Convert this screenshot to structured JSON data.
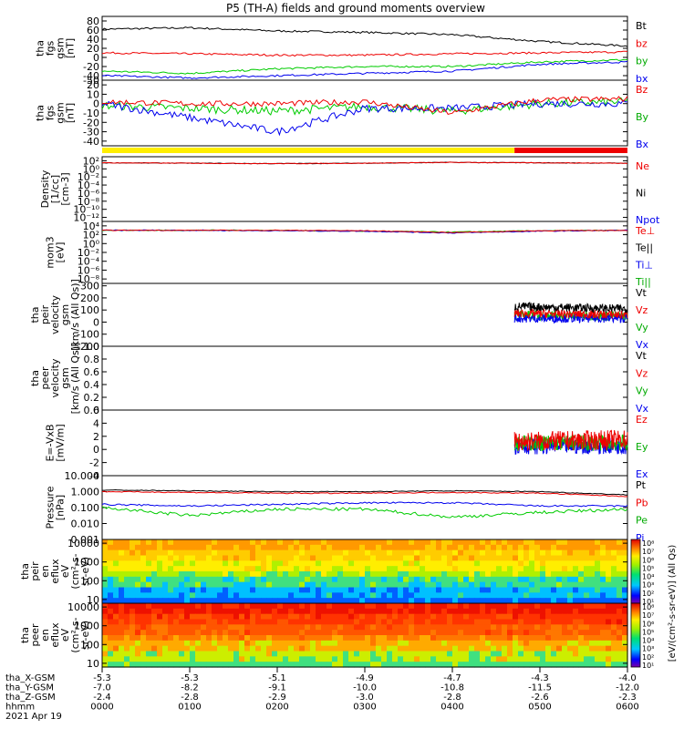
{
  "title": "P5 (TH-A) fields and ground moments overview",
  "colors": {
    "black": "#000000",
    "red": "#ee0000",
    "green": "#00cc00",
    "blue": "#0000ee",
    "yellow": "#ffee00",
    "bar_red": "#ee0000"
  },
  "panels": [
    {
      "ylabel": [
        "tha",
        "fgs",
        "gsm",
        "[nT]"
      ],
      "ylim": [
        -50,
        90
      ],
      "ticks": [
        "80",
        "60",
        "40",
        "20",
        "0",
        "-20",
        "-40",
        "-50"
      ],
      "tickvals": [
        80,
        60,
        40,
        20,
        0,
        -20,
        -40,
        -50
      ],
      "legend": [
        {
          "text": "Bt",
          "color": "#000000"
        },
        {
          "text": "bz",
          "color": "#ee0000"
        },
        {
          "text": "by",
          "color": "#00aa00"
        },
        {
          "text": "bx",
          "color": "#0000ee"
        }
      ]
    },
    {
      "ylabel": [
        "tha",
        "fgs",
        "gsm",
        "[nT]"
      ],
      "ylim": [
        -45,
        25
      ],
      "ticks": [
        "20",
        "10",
        "0",
        "-10",
        "-20",
        "-30",
        "-40"
      ],
      "tickvals": [
        20,
        10,
        0,
        -10,
        -20,
        -30,
        -40
      ],
      "legend": [
        {
          "text": "Bz",
          "color": "#ee0000"
        },
        {
          "text": "By",
          "color": "#00aa00"
        },
        {
          "text": "Bx",
          "color": "#0000ee"
        }
      ]
    },
    {
      "ylabel": [
        "Density",
        "[1/cc]",
        "[cm-3]"
      ],
      "ylim": [
        -13,
        3
      ],
      "ticks": [
        "10²",
        "10⁰",
        "10⁻²",
        "10⁻⁴",
        "10⁻⁶",
        "10⁻⁸",
        "10⁻¹⁰",
        "10⁻¹²"
      ],
      "tickvals": [
        2,
        0,
        -2,
        -4,
        -6,
        -8,
        -10,
        -12
      ],
      "legend": [
        {
          "text": "Ne",
          "color": "#ee0000"
        },
        {
          "text": "Ni",
          "color": "#000000"
        },
        {
          "text": "Npot",
          "color": "#0000ee"
        }
      ]
    },
    {
      "ylabel": [
        "mom3",
        "[eV]"
      ],
      "ylim": [
        -9,
        5
      ],
      "ticks": [
        "10⁴",
        "10²",
        "10⁰",
        "10⁻²",
        "10⁻⁴",
        "10⁻⁶",
        "10⁻⁸"
      ],
      "tickvals": [
        4,
        2,
        0,
        -2,
        -4,
        -6,
        -8
      ],
      "legend": [
        {
          "text": "Te⊥",
          "color": "#ee0000"
        },
        {
          "text": "Te||",
          "color": "#000000"
        },
        {
          "text": "Ti⊥",
          "color": "#0000ee"
        },
        {
          "text": "Ti||",
          "color": "#00aa00"
        }
      ]
    },
    {
      "ylabel": [
        "tha",
        "peir",
        "velocity",
        "gsm",
        "[km/s (All Qs)]"
      ],
      "ylim": [
        -200,
        320
      ],
      "ticks": [
        "300",
        "200",
        "100",
        "0",
        "-100",
        "-200"
      ],
      "tickvals": [
        300,
        200,
        100,
        0,
        -100,
        -200
      ],
      "legend": [
        {
          "text": "Vt",
          "color": "#000000"
        },
        {
          "text": "Vz",
          "color": "#ee0000"
        },
        {
          "text": "Vy",
          "color": "#00aa00"
        },
        {
          "text": "Vx",
          "color": "#0000ee"
        }
      ]
    },
    {
      "ylabel": [
        "tha",
        "peer",
        "velocity",
        "gsm",
        "[km/s (All Qs)]"
      ],
      "ylim": [
        0,
        1
      ],
      "ticks": [
        "1.0",
        "0.8",
        "0.6",
        "0.4",
        "0.2",
        "0.0"
      ],
      "tickvals": [
        1,
        0.8,
        0.6,
        0.4,
        0.2,
        0
      ],
      "legend": [
        {
          "text": "Vt",
          "color": "#000000"
        },
        {
          "text": "Vz",
          "color": "#ee0000"
        },
        {
          "text": "Vy",
          "color": "#00aa00"
        },
        {
          "text": "Vx",
          "color": "#0000ee"
        }
      ]
    },
    {
      "ylabel": [
        "E=-VxB",
        "[mV/m]"
      ],
      "ylim": [
        -4,
        6
      ],
      "ticks": [
        "6",
        "4",
        "2",
        "0",
        "-2",
        "-4"
      ],
      "tickvals": [
        6,
        4,
        2,
        0,
        -2,
        -4
      ],
      "legend": [
        {
          "text": "Ez",
          "color": "#ee0000"
        },
        {
          "text": "Ey",
          "color": "#00aa00"
        },
        {
          "text": "Ex",
          "color": "#0000ee"
        }
      ]
    },
    {
      "ylabel": [
        "Pressure",
        "[nPa]"
      ],
      "ylim": [
        -3,
        1
      ],
      "ticks": [
        "10.000",
        "1.000",
        "0.100",
        "0.010",
        "0.001"
      ],
      "tickvals": [
        1,
        0,
        -1,
        -2,
        -3
      ],
      "legend": [
        {
          "text": "Pt",
          "color": "#000000"
        },
        {
          "text": "Pb",
          "color": "#ee0000"
        },
        {
          "text": "Pe",
          "color": "#00aa00"
        },
        {
          "text": "Pi",
          "color": "#0000ee"
        }
      ]
    },
    {
      "ylabel": [
        "tha",
        "peir",
        "en",
        "eflux",
        "eV",
        "(cm²-s-",
        "sr-eV)"
      ],
      "ylim": [
        0.8,
        4.2
      ],
      "ticks": [
        "10000",
        "1000",
        "100",
        "10"
      ],
      "tickvals": [
        4,
        3,
        2,
        1
      ],
      "legend": []
    },
    {
      "ylabel": [
        "tha",
        "peer",
        "en",
        "eflux",
        "eV",
        "(cm²-s-",
        "sr-eV)"
      ],
      "ylim": [
        0.8,
        4.2
      ],
      "ticks": [
        "10000",
        "1000",
        "100",
        "10"
      ],
      "tickvals": [
        4,
        3,
        2,
        1
      ],
      "legend": []
    }
  ],
  "colorbar": {
    "label": "[eV/(cm²-s-sr-eV)] (All Qs)",
    "ticks_top": [
      "10⁸",
      "10⁷",
      "10⁶",
      "10⁵",
      "10⁴",
      "10³",
      "10²",
      "10¹"
    ],
    "ticks_bottom": [
      "10⁸",
      "10⁷",
      "10⁶",
      "10⁵",
      "10⁴",
      "10³",
      "10²",
      "10¹"
    ]
  },
  "mode_bar": {
    "segments": [
      {
        "from": 0,
        "to": 0.785,
        "color": "#ffee00"
      },
      {
        "from": 0.785,
        "to": 1,
        "color": "#ee0000"
      }
    ]
  },
  "xaxis": {
    "rows": [
      {
        "label": "tha_X-GSM",
        "values": [
          "-5.3",
          "-5.3",
          "-5.1",
          "-4.9",
          "-4.7",
          "-4.3",
          "-4.0"
        ]
      },
      {
        "label": "tha_Y-GSM",
        "values": [
          "-7.0",
          "-8.2",
          "-9.1",
          "-10.0",
          "-10.8",
          "-11.5",
          "-12.0"
        ]
      },
      {
        "label": "tha_Z-GSM",
        "values": [
          "-2.4",
          "-2.8",
          "-2.9",
          "-3.0",
          "-2.8",
          "-2.6",
          "-2.3"
        ]
      },
      {
        "label": "hhmm",
        "values": [
          "0000",
          "0100",
          "0200",
          "0300",
          "0400",
          "0500",
          "0600"
        ]
      }
    ],
    "date": "2021 Apr 19"
  },
  "chart_data": {
    "type": "line",
    "title": "P5 (TH-A) fields and ground moments overview",
    "x": [
      "0000",
      "0100",
      "0200",
      "0300",
      "0400",
      "0500",
      "0600"
    ],
    "series": [
      {
        "name": "Bt",
        "values": [
          62,
          65,
          58,
          55,
          50,
          35,
          25
        ]
      },
      {
        "name": "bz",
        "values": [
          10,
          8,
          5,
          5,
          8,
          10,
          12
        ]
      },
      {
        "name": "by",
        "values": [
          -30,
          -35,
          -25,
          -20,
          -20,
          -10,
          -5
        ]
      },
      {
        "name": "bx",
        "values": [
          -40,
          -45,
          -40,
          -35,
          -30,
          -15,
          -10
        ]
      }
    ]
  }
}
